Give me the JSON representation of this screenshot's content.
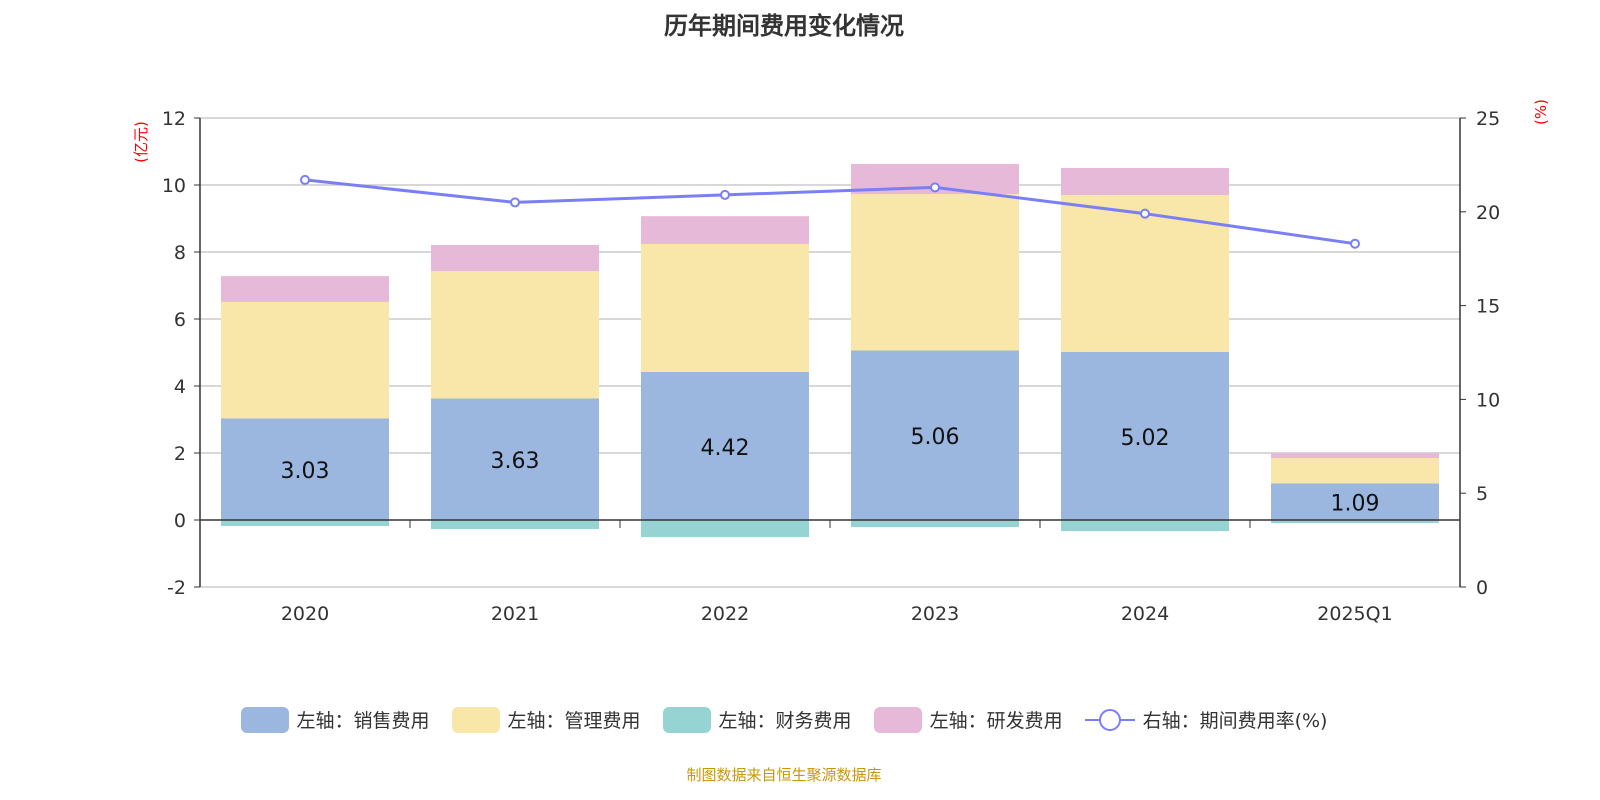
{
  "chart_data": {
    "type": "bar",
    "title": "历年期间费用变化情况",
    "categories": [
      "2020",
      "2021",
      "2022",
      "2023",
      "2024",
      "2025Q1"
    ],
    "y_left": {
      "label": "(亿元)",
      "ylim": [
        -2,
        12
      ],
      "ticks": [
        -2,
        0,
        2,
        4,
        6,
        8,
        10,
        12
      ]
    },
    "y_right": {
      "label": "(%)",
      "ylim": [
        0,
        25
      ],
      "ticks": [
        0,
        5,
        10,
        15,
        20,
        25
      ]
    },
    "stacked": true,
    "grid": true,
    "legend_position": "bottom",
    "series": [
      {
        "name": "左轴：销售费用",
        "axis": "left",
        "type": "bar",
        "color": "#9bb7e0",
        "values": [
          3.03,
          3.63,
          4.42,
          5.06,
          5.02,
          1.09
        ],
        "show_labels": true
      },
      {
        "name": "左轴：管理费用",
        "axis": "left",
        "type": "bar",
        "color": "#f8e7a8",
        "values": [
          3.48,
          3.8,
          3.82,
          4.67,
          4.68,
          0.76
        ]
      },
      {
        "name": "左轴：财务费用",
        "axis": "left",
        "type": "bar",
        "color": "#96d4d4",
        "values": [
          -0.18,
          -0.27,
          -0.51,
          -0.21,
          -0.33,
          -0.09
        ]
      },
      {
        "name": "左轴：研发费用",
        "axis": "left",
        "type": "bar",
        "color": "#e7b9d8",
        "values": [
          0.77,
          0.78,
          0.83,
          0.9,
          0.81,
          0.15
        ]
      },
      {
        "name": "右轴：期间费用率(%)",
        "axis": "right",
        "type": "line",
        "color": "#7b7ff5",
        "values": [
          21.7,
          20.5,
          20.9,
          21.3,
          19.9,
          18.3
        ]
      }
    ]
  },
  "footer": "制图数据来自恒生聚源数据库"
}
